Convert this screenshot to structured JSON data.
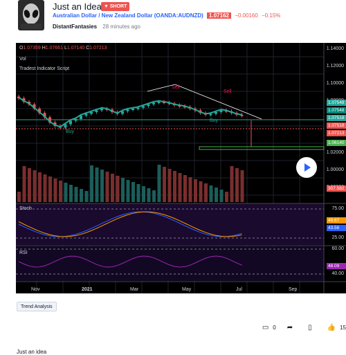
{
  "idea": {
    "title": "Just an Idea",
    "badge": "SHORT",
    "pair": "Australian Dollar / New Zealand Dollar (OANDA:AUDNZD)",
    "price": "1.07162",
    "change": "−0.00160",
    "change_pct": "−0.15%",
    "author": "DistantFantasies",
    "time_ago": "28 minutes ago"
  },
  "chart": {
    "ohlc": {
      "O": "1.07359",
      "H": "1.07661",
      "L": "1.07140",
      "C": "1.07213"
    },
    "vol_label": "Vol",
    "script_label": "Tradest Indicator Script",
    "stoch_label": "Stoch",
    "rsi_label": "RSI",
    "buy_label": "Buy",
    "sell_label": "Sell",
    "price_axis": [
      "1.14000",
      "1.12000",
      "1.10000",
      "1.08000",
      "1.06000",
      "1.04000",
      "1.02000",
      "1.00000",
      "0.98000"
    ],
    "price_tags": [
      {
        "label": "1.07548",
        "color": "#26a69a"
      },
      {
        "label": "1.07548",
        "color": "#00897b"
      },
      {
        "label": "1.07518",
        "color": "#26a69a"
      },
      {
        "label": "1.07518",
        "color": "#ef5350"
      },
      {
        "label": "1.07213",
        "color": "#ef5350"
      },
      {
        "label": "1.06140",
        "color": "#4caf50"
      }
    ],
    "vol_tag": "307.582",
    "stoch_axis": [
      "75.00",
      "25.00"
    ],
    "stoch_tags": [
      {
        "label": "48.67",
        "color": "#ff9800"
      },
      {
        "label": "43.56",
        "color": "#2962ff"
      }
    ],
    "rsi_axis": [
      "60.00",
      "40.00"
    ],
    "rsi_tag": "48.09",
    "x_axis": [
      "Nov",
      "2021",
      "Mar",
      "May",
      "Jul",
      "Sep"
    ]
  },
  "footer": {
    "tag": "Trend Analysis",
    "comments": "0",
    "likes": "15",
    "description": "Just an idea"
  }
}
